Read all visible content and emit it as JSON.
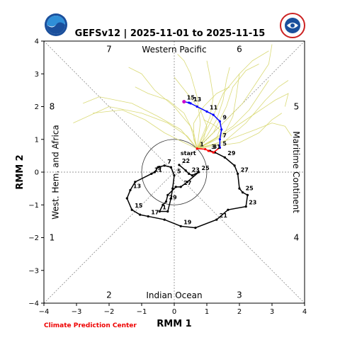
{
  "chart_data": {
    "type": "line",
    "title": "GEFSv12 | 2025-11-01 to 2025-11-15",
    "xlabel": "RMM 1",
    "ylabel": "RMM 2",
    "xlim": [
      -4,
      4
    ],
    "ylim": [
      -4,
      4
    ],
    "xticks": [
      -4,
      -3,
      -2,
      -1,
      0,
      1,
      2,
      3,
      4
    ],
    "yticks": [
      -4,
      -3,
      -2,
      -1,
      0,
      1,
      2,
      3,
      4
    ],
    "region_labels": {
      "top": "Western Pacific",
      "bottom": "Indian Ocean",
      "left": "West. Hem. and Africa",
      "right": "Maritime Continent"
    },
    "phase_labels": [
      {
        "phase": "7",
        "x": -2,
        "y": 3.75
      },
      {
        "phase": "6",
        "x": 2,
        "y": 3.75
      },
      {
        "phase": "8",
        "x": -3.75,
        "y": 2
      },
      {
        "phase": "5",
        "x": 3.75,
        "y": 2
      },
      {
        "phase": "1",
        "x": -3.75,
        "y": -2
      },
      {
        "phase": "4",
        "x": 3.75,
        "y": -2
      },
      {
        "phase": "2",
        "x": -2,
        "y": -3.75
      },
      {
        "phase": "3",
        "x": 2,
        "y": -3.75
      }
    ],
    "observed": {
      "start_label": "start",
      "points": [
        {
          "x": 0.15,
          "y": 0.22,
          "label": "22"
        },
        {
          "x": 0.35,
          "y": 0.05
        },
        {
          "x": 0.45,
          "y": -0.05,
          "label": "23"
        },
        {
          "x": 0.55,
          "y": -0.1
        },
        {
          "x": 0.75,
          "y": 0.0,
          "label": "25"
        },
        {
          "x": 0.4,
          "y": -0.3
        },
        {
          "x": 0.2,
          "y": -0.45,
          "label": "27"
        },
        {
          "x": 0.05,
          "y": -0.45
        },
        {
          "x": -0.2,
          "y": -0.7
        },
        {
          "x": -0.25,
          "y": -0.9,
          "label": "29"
        },
        {
          "x": -0.35,
          "y": -1.0
        },
        {
          "x": -0.45,
          "y": -1.2,
          "label": "1"
        },
        {
          "x": -0.2,
          "y": -1.2
        },
        {
          "x": -0.1,
          "y": -0.8
        },
        {
          "x": -0.05,
          "y": -0.5
        },
        {
          "x": 0.0,
          "y": -0.1,
          "label": "5"
        },
        {
          "x": -0.1,
          "y": 0.15
        },
        {
          "x": -0.3,
          "y": 0.2,
          "label": "7"
        },
        {
          "x": -0.5,
          "y": 0.15
        },
        {
          "x": -0.6,
          "y": 0.0,
          "label": "9"
        },
        {
          "x": -0.7,
          "y": -0.05,
          "label": "11"
        },
        {
          "x": -1.2,
          "y": -0.3
        },
        {
          "x": -1.35,
          "y": -0.55,
          "label": "13"
        },
        {
          "x": -1.45,
          "y": -0.8
        },
        {
          "x": -1.3,
          "y": -1.15,
          "label": "15"
        },
        {
          "x": -1.05,
          "y": -1.3
        },
        {
          "x": -0.8,
          "y": -1.35,
          "label": "17"
        },
        {
          "x": -0.3,
          "y": -1.45
        },
        {
          "x": 0.2,
          "y": -1.65,
          "label": "19"
        },
        {
          "x": 0.65,
          "y": -1.7
        },
        {
          "x": 1.3,
          "y": -1.45,
          "label": "21"
        },
        {
          "x": 1.65,
          "y": -1.15
        },
        {
          "x": 2.2,
          "y": -1.05,
          "label": "23"
        },
        {
          "x": 2.25,
          "y": -0.7
        },
        {
          "x": 2.1,
          "y": -0.62,
          "label": "25"
        },
        {
          "x": 2.0,
          "y": -0.5
        },
        {
          "x": 1.95,
          "y": -0.05,
          "label": "27"
        },
        {
          "x": 1.85,
          "y": 0.2
        },
        {
          "x": 1.55,
          "y": 0.45,
          "label": "29"
        },
        {
          "x": 1.25,
          "y": 0.6
        },
        {
          "x": 1.1,
          "y": 0.65,
          "label": "31"
        }
      ]
    },
    "forecast_red": {
      "points": [
        {
          "x": 0.7,
          "y": 0.72,
          "label": "1"
        },
        {
          "x": 0.95,
          "y": 0.7
        },
        {
          "x": 1.05,
          "y": 0.65,
          "label": "3"
        },
        {
          "x": 1.2,
          "y": 0.6
        },
        {
          "x": 1.4,
          "y": 0.75,
          "label": "5"
        }
      ]
    },
    "forecast_blue": {
      "points": [
        {
          "x": 1.4,
          "y": 0.75
        },
        {
          "x": 1.4,
          "y": 1.0,
          "label": "7"
        },
        {
          "x": 1.45,
          "y": 1.3
        },
        {
          "x": 1.4,
          "y": 1.55,
          "label": "9"
        },
        {
          "x": 1.2,
          "y": 1.75
        },
        {
          "x": 1.0,
          "y": 1.85,
          "label": "11"
        },
        {
          "x": 0.7,
          "y": 2.0
        },
        {
          "x": 0.5,
          "y": 2.1,
          "label": "13"
        },
        {
          "x": 0.45,
          "y": 2.12
        },
        {
          "x": 0.3,
          "y": 2.15,
          "label": "15"
        }
      ]
    },
    "ensemble_members": [
      [
        [
          0.7,
          0.72
        ],
        [
          1.0,
          1.1
        ],
        [
          1.3,
          1.6
        ],
        [
          1.5,
          2.2
        ],
        [
          1.6,
          2.8
        ],
        [
          1.7,
          3.2
        ]
      ],
      [
        [
          0.7,
          0.72
        ],
        [
          0.9,
          1.2
        ],
        [
          1.1,
          1.7
        ],
        [
          1.2,
          2.3
        ],
        [
          1.1,
          2.9
        ],
        [
          1.0,
          3.4
        ]
      ],
      [
        [
          0.7,
          0.72
        ],
        [
          1.2,
          1.0
        ],
        [
          1.8,
          1.4
        ],
        [
          2.3,
          1.9
        ],
        [
          2.7,
          2.5
        ],
        [
          2.9,
          2.8
        ]
      ],
      [
        [
          0.7,
          0.72
        ],
        [
          0.6,
          1.2
        ],
        [
          0.3,
          1.8
        ],
        [
          -0.2,
          2.2
        ],
        [
          -0.8,
          2.4
        ],
        [
          -1.2,
          2.6
        ]
      ],
      [
        [
          0.7,
          0.72
        ],
        [
          0.4,
          1.1
        ],
        [
          -0.2,
          1.5
        ],
        [
          -1.0,
          1.8
        ],
        [
          -2.0,
          2.0
        ],
        [
          -3.1,
          1.5
        ]
      ],
      [
        [
          0.7,
          0.72
        ],
        [
          1.5,
          0.9
        ],
        [
          2.2,
          1.5
        ],
        [
          2.8,
          2.2
        ],
        [
          3.2,
          2.6
        ],
        [
          3.5,
          2.8
        ]
      ],
      [
        [
          0.7,
          0.72
        ],
        [
          1.1,
          1.5
        ],
        [
          1.5,
          2.4
        ],
        [
          2.0,
          3.0
        ],
        [
          2.4,
          3.4
        ],
        [
          2.9,
          3.7
        ]
      ],
      [
        [
          0.7,
          0.72
        ],
        [
          0.8,
          1.5
        ],
        [
          0.7,
          2.3
        ],
        [
          0.5,
          3.0
        ],
        [
          0.3,
          3.4
        ],
        [
          0.1,
          3.6
        ]
      ],
      [
        [
          0.7,
          0.72
        ],
        [
          1.6,
          1.2
        ],
        [
          2.5,
          1.8
        ],
        [
          3.1,
          2.2
        ],
        [
          3.5,
          2.4
        ],
        [
          3.4,
          2.0
        ]
      ],
      [
        [
          0.7,
          0.72
        ],
        [
          1.3,
          0.8
        ],
        [
          2.0,
          0.9
        ],
        [
          2.6,
          1.2
        ],
        [
          3.0,
          1.6
        ],
        [
          3.3,
          1.8
        ]
      ],
      [
        [
          0.7,
          0.72
        ],
        [
          0.5,
          1.4
        ],
        [
          0.0,
          2.0
        ],
        [
          -0.6,
          2.5
        ],
        [
          -1.0,
          3.0
        ],
        [
          -1.4,
          3.2
        ]
      ],
      [
        [
          0.7,
          0.72
        ],
        [
          1.4,
          1.4
        ],
        [
          2.1,
          2.1
        ],
        [
          2.5,
          2.7
        ],
        [
          2.9,
          3.3
        ],
        [
          3.0,
          3.9
        ]
      ],
      [
        [
          0.7,
          0.72
        ],
        [
          0.3,
          0.9
        ],
        [
          -0.3,
          1.2
        ],
        [
          -0.9,
          1.6
        ],
        [
          -1.6,
          1.9
        ],
        [
          -2.5,
          1.8
        ]
      ],
      [
        [
          0.7,
          0.72
        ],
        [
          1.2,
          1.2
        ],
        [
          1.6,
          2.0
        ],
        [
          1.8,
          2.6
        ],
        [
          2.2,
          3.1
        ],
        [
          2.6,
          3.3
        ]
      ],
      [
        [
          0.7,
          0.72
        ],
        [
          0.9,
          1.0
        ],
        [
          1.0,
          1.4
        ],
        [
          0.8,
          1.9
        ],
        [
          0.4,
          2.4
        ],
        [
          0.0,
          2.9
        ]
      ],
      [
        [
          0.7,
          0.72
        ],
        [
          1.7,
          1.0
        ],
        [
          2.5,
          1.3
        ],
        [
          3.0,
          1.5
        ],
        [
          3.4,
          1.4
        ],
        [
          3.6,
          1.1
        ]
      ],
      [
        [
          0.7,
          0.72
        ],
        [
          1.1,
          0.9
        ],
        [
          1.5,
          1.1
        ],
        [
          1.8,
          1.7
        ],
        [
          1.9,
          2.3
        ],
        [
          2.0,
          3.0
        ]
      ],
      [
        [
          0.7,
          0.72
        ],
        [
          0.6,
          1.0
        ],
        [
          0.6,
          1.5
        ],
        [
          0.9,
          2.0
        ],
        [
          1.3,
          2.4
        ],
        [
          1.7,
          2.6
        ]
      ],
      [
        [
          0.7,
          0.72
        ],
        [
          1.0,
          0.85
        ],
        [
          1.3,
          1.05
        ],
        [
          1.4,
          1.3
        ],
        [
          1.2,
          1.45
        ],
        [
          0.9,
          1.6
        ]
      ],
      [
        [
          0.7,
          0.72
        ],
        [
          0.2,
          1.3
        ],
        [
          -0.5,
          1.7
        ],
        [
          -1.3,
          2.1
        ],
        [
          -2.3,
          2.3
        ],
        [
          -2.8,
          2.1
        ]
      ]
    ],
    "amplitude_circle_radius": 1,
    "credit": "Climate Prediction Center",
    "grid": false,
    "legend": "none"
  },
  "colors": {
    "observed": "#000000",
    "forecast_first": "#ff0000",
    "forecast_second": "#0000ff",
    "ensemble": "#d6d668",
    "credit": "#ee0000"
  },
  "logos": {
    "left": "noaa-logo",
    "right": "nws-logo"
  }
}
